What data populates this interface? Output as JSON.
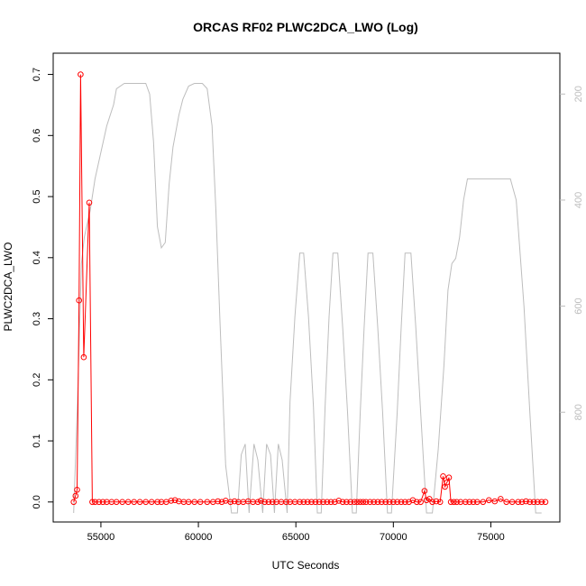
{
  "chart_data": {
    "type": "line",
    "title": "ORCAS RF02 PLWC2DCA_LWO (Log)",
    "xlabel": "UTC Seconds",
    "ylabel": "PLWC2DCA_LWO",
    "xlim": [
      53200,
      77800
    ],
    "ylim": [
      -0.018,
      0.72
    ],
    "x_ticks": [
      55000,
      60000,
      65000,
      70000,
      75000
    ],
    "x_tick_labels": [
      "55000",
      "60000",
      "65000",
      "70000",
      "75000"
    ],
    "y_ticks": [
      0.0,
      0.1,
      0.2,
      0.3,
      0.4,
      0.5,
      0.6,
      0.7
    ],
    "y_tick_labels": [
      "0.0",
      "0.1",
      "0.2",
      "0.3",
      "0.4",
      "0.5",
      "0.6",
      "0.7"
    ],
    "secondary_axis": {
      "side": "right",
      "scale": "reversed",
      "ylim": [
        990,
        140
      ],
      "ticks": [
        200,
        400,
        600,
        800
      ],
      "tick_labels": [
        "200",
        "400",
        "600",
        "800"
      ],
      "color": "#bdbdbd"
    },
    "grid": false,
    "series": [
      {
        "color": "#ff0000",
        "style": "line+open-circles",
        "axis": "left",
        "x": [
          53600,
          53700,
          53780,
          53880,
          53960,
          54120,
          54400,
          54560,
          54700,
          54900,
          55100,
          55300,
          55550,
          55800,
          56100,
          56400,
          56700,
          57000,
          57300,
          57600,
          57900,
          58100,
          58350,
          58600,
          58800,
          59000,
          59250,
          59500,
          59800,
          60100,
          60450,
          60750,
          61000,
          61200,
          61400,
          61650,
          61850,
          62050,
          62300,
          62550,
          62800,
          63050,
          63200,
          63400,
          63600,
          63800,
          64000,
          64250,
          64500,
          64700,
          64950,
          65200,
          65400,
          65600,
          65800,
          66000,
          66200,
          66400,
          66600,
          66800,
          67000,
          67200,
          67400,
          67600,
          67800,
          68000,
          68150,
          68300,
          68450,
          68600,
          68800,
          69000,
          69200,
          69400,
          69600,
          69800,
          70000,
          70200,
          70400,
          70600,
          70800,
          71000,
          71200,
          71400,
          71600,
          71700,
          71850,
          72000,
          72200,
          72400,
          72550,
          72650,
          72750,
          72850,
          72950,
          73100,
          73250,
          73450,
          73700,
          73900,
          74100,
          74300,
          74600,
          74900,
          75200,
          75500,
          75800,
          76100,
          76400,
          76600,
          76800,
          77000,
          77200,
          77400,
          77600,
          77800
        ],
        "y": [
          0.0,
          0.01,
          0.02,
          0.33,
          0.7,
          0.237,
          0.49,
          0.0,
          0.0,
          0.0,
          0.0,
          0.0,
          0.0,
          0.0,
          0.0,
          0.0,
          0.0,
          0.0,
          0.0,
          0.0,
          0.0,
          0.0,
          0.0,
          0.002,
          0.003,
          0.001,
          0.0,
          0.0,
          0.0,
          0.0,
          0.0,
          0.0,
          0.001,
          0.0,
          0.002,
          0.0,
          0.001,
          0.0,
          0.0,
          0.001,
          0.0,
          0.0,
          0.002,
          0.0,
          0.0,
          0.0,
          0.0,
          0.0,
          0.0,
          0.0,
          0.0,
          0.0,
          0.0,
          0.0,
          0.0,
          0.0,
          0.0,
          0.0,
          0.0,
          0.0,
          0.0,
          0.002,
          0.0,
          0.0,
          0.0,
          0.0,
          0.0,
          0.0,
          0.0,
          0.0,
          0.0,
          0.0,
          0.0,
          0.0,
          0.0,
          0.0,
          0.0,
          0.0,
          0.0,
          0.0,
          0.0,
          0.003,
          0.0,
          0.0,
          0.018,
          0.003,
          0.005,
          0.0,
          0.001,
          0.0,
          0.042,
          0.025,
          0.032,
          0.04,
          0.0,
          0.0,
          0.0,
          0.0,
          0.0,
          0.0,
          0.0,
          0.0,
          0.0,
          0.003,
          0.001,
          0.005,
          0.0,
          0.0,
          0.0,
          0.0,
          0.001,
          0.0,
          0.0,
          0.0,
          0.0,
          0.0
        ]
      },
      {
        "color": "#bdbdbd",
        "style": "line",
        "axis": "right",
        "x": [
          53600,
          53800,
          54000,
          54150,
          54450,
          54700,
          55000,
          55300,
          55650,
          55800,
          56200,
          57000,
          57300,
          57500,
          57700,
          57900,
          58100,
          58300,
          58500,
          58700,
          59000,
          59200,
          59500,
          59800,
          60000,
          60200,
          60450,
          60700,
          60900,
          61100,
          61400,
          61700,
          62000,
          62200,
          62400,
          62600,
          62850,
          63050,
          63300,
          63500,
          63700,
          63900,
          64100,
          64300,
          64550,
          64700,
          64950,
          65200,
          65400,
          65650,
          65900,
          66100,
          66300,
          66500,
          66700,
          66900,
          67150,
          67400,
          67650,
          67900,
          68100,
          68300,
          68500,
          68700,
          68950,
          69200,
          69450,
          69700,
          69900,
          70200,
          70400,
          70600,
          70900,
          71150,
          71400,
          71700,
          72000,
          72300,
          72600,
          72800,
          73000,
          73200,
          73400,
          73600,
          73800,
          74100,
          74400,
          74600,
          75000,
          75500,
          76000,
          76300,
          76500,
          76700,
          77000,
          77300,
          77600
        ],
        "y": [
          990,
          780,
          520,
          470,
          420,
          360,
          310,
          260,
          220,
          190,
          180,
          180,
          180,
          200,
          290,
          450,
          490,
          480,
          370,
          300,
          240,
          210,
          185,
          180,
          180,
          180,
          190,
          260,
          420,
          620,
          900,
          990,
          990,
          880,
          860,
          990,
          860,
          890,
          990,
          860,
          880,
          990,
          860,
          890,
          990,
          780,
          620,
          500,
          500,
          620,
          790,
          990,
          990,
          790,
          620,
          500,
          500,
          640,
          800,
          990,
          990,
          800,
          640,
          500,
          500,
          640,
          800,
          990,
          990,
          800,
          640,
          500,
          500,
          640,
          800,
          990,
          990,
          870,
          710,
          570,
          520,
          510,
          470,
          400,
          360,
          360,
          360,
          360,
          360,
          360,
          360,
          400,
          500,
          600,
          800,
          990,
          990
        ]
      }
    ]
  }
}
